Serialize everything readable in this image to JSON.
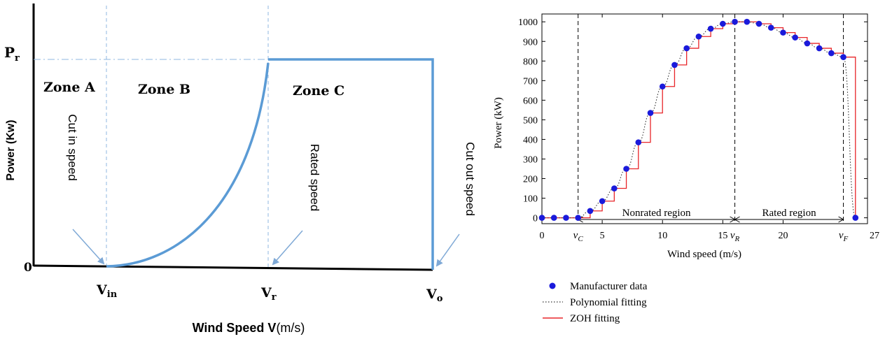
{
  "left_figure": {
    "ylabel": "Power (Kw)",
    "xlabel_main": "Wind Speed V",
    "xlabel_unit": "(m/s)",
    "pr_label": "P",
    "pr_sub": "r",
    "zero_label": "0",
    "vin_label": "V",
    "vin_sub": "in",
    "vr_label": "V",
    "vr_sub": "r",
    "vo_label": "V",
    "vo_sub": "o",
    "zones": [
      "Zone A",
      "Zone B",
      "Zone C"
    ],
    "annotations": {
      "cut_in": "Cut in speed",
      "rated": "Rated speed",
      "cut_out": "Cut out speed"
    },
    "colors": {
      "curve": "#5b9bd5",
      "guide": "#8fb7e0",
      "arrow": "#7fa9d6"
    }
  },
  "chart_data": {
    "type": "scatter",
    "title": "",
    "xlabel": "Wind speed (m/s)",
    "ylabel": "Power (kW)",
    "xlim": [
      0,
      27
    ],
    "ylim": [
      -30,
      1040
    ],
    "xticks": [
      0,
      5,
      10,
      15,
      20,
      27
    ],
    "yticks": [
      0,
      100,
      200,
      300,
      400,
      500,
      600,
      700,
      800,
      900,
      1000
    ],
    "special_ticks": [
      {
        "x": 3,
        "base": "v",
        "sub": "C"
      },
      {
        "x": 16,
        "base": "v",
        "sub": "R"
      },
      {
        "x": 25,
        "base": "v",
        "sub": "F"
      }
    ],
    "regions": [
      {
        "label": "Nonrated region",
        "from": 3,
        "to": 16
      },
      {
        "label": "Rated region",
        "from": 16,
        "to": 25
      }
    ],
    "series": [
      {
        "name": "Manufacturer data",
        "style": "dots",
        "color": "#1a1adb",
        "x": [
          0,
          1,
          2,
          3,
          4,
          5,
          6,
          7,
          8,
          9,
          10,
          11,
          12,
          13,
          14,
          15,
          16,
          17,
          18,
          19,
          20,
          21,
          22,
          23,
          24,
          25,
          26
        ],
        "y": [
          0,
          0,
          0,
          0,
          35,
          85,
          150,
          250,
          385,
          535,
          670,
          780,
          865,
          925,
          965,
          990,
          1000,
          1000,
          990,
          970,
          945,
          920,
          890,
          865,
          840,
          820,
          0
        ]
      },
      {
        "name": "Polynomial fitting",
        "style": "dotted",
        "color": "#333333"
      },
      {
        "name": "ZOH fitting",
        "style": "step",
        "color": "#e8262a"
      }
    ],
    "legend_position": "bottom-left"
  }
}
